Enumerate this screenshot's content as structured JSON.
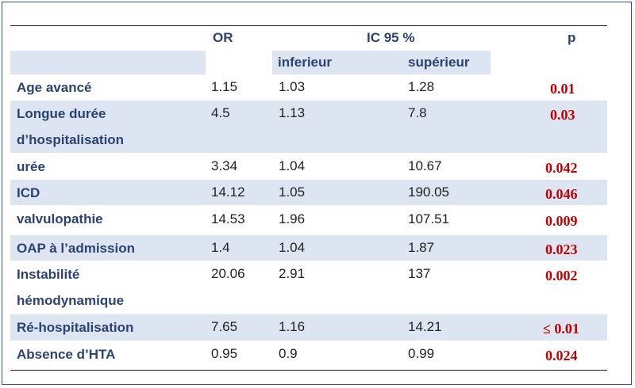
{
  "header": {
    "or": "OR",
    "ic": "IC 95 %",
    "p": "p",
    "inf": "inferieur",
    "sup": "supérieur"
  },
  "rows": [
    {
      "label": "Age avancé",
      "or": "1.15",
      "inf": "1.03",
      "sup": "1.28",
      "p": "0.01"
    },
    {
      "label": "Longue durée d’hospitalisation",
      "or": "4.5",
      "inf": "1.13",
      "sup": "7.8",
      "p": "0.03"
    },
    {
      "label": "urée",
      "or": "3.34",
      "inf": "1.04",
      "sup": "10.67",
      "p": "0.042"
    },
    {
      "label": "ICD",
      "or": "14.12",
      "inf": "1.05",
      "sup": "190.05",
      "p": "0.046"
    },
    {
      "label": "valvulopathie",
      "or": "14.53",
      "inf": "1.96",
      "sup": "107.51",
      "p": "0.009"
    },
    {
      "label": "OAP à l’admission",
      "or": "1.4",
      "inf": "1.04",
      "sup": "1.87",
      "p": "0.023"
    },
    {
      "label": "Instabilité hémodynamique",
      "or": "20.06",
      "inf": "2.91",
      "sup": "137",
      "p": "0.002"
    },
    {
      "label": "Ré-hospitalisation",
      "or": "7.65",
      "inf": "1.16",
      "sup": "14.21",
      "p": "≤ 0.01"
    },
    {
      "label": "Absence d’HTA",
      "or": "0.95",
      "inf": "0.9",
      "sup": "0.99",
      "p": "0.024"
    }
  ]
}
